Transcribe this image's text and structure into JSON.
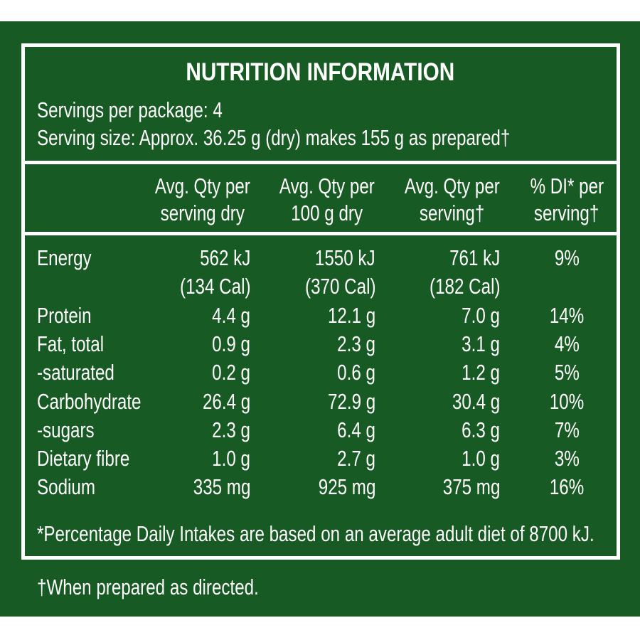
{
  "title": "NUTRITION INFORMATION",
  "servings_per_package": "Servings per package: 4",
  "serving_size": "Serving size: Approx. 36.25 g (dry) makes 155 g as prepared†",
  "columns": [
    [
      "Avg. Qty per",
      "serving dry"
    ],
    [
      "Avg. Qty per",
      "100 g dry"
    ],
    [
      "Avg. Qty per",
      "serving†"
    ],
    [
      "% DI* per",
      "serving†"
    ]
  ],
  "rows": [
    {
      "name": "Energy",
      "values": [
        "562 kJ",
        "1550 kJ",
        "761 kJ",
        "9%"
      ],
      "sub": [
        "(134 Cal)",
        "(370 Cal)",
        "(182 Cal)"
      ]
    },
    {
      "name": "Protein",
      "values": [
        "4.4 g",
        "12.1 g",
        "7.0 g",
        "14%"
      ]
    },
    {
      "name": "Fat, total",
      "values": [
        "0.9 g",
        "2.3 g",
        "3.1 g",
        "4%"
      ]
    },
    {
      "name": "-saturated",
      "values": [
        "0.2 g",
        "0.6 g",
        "1.2 g",
        "5%"
      ]
    },
    {
      "name": "Carbohydrate",
      "values": [
        "26.4 g",
        "72.9 g",
        "30.4 g",
        "10%"
      ]
    },
    {
      "name": "-sugars",
      "values": [
        "2.3 g",
        "6.4 g",
        "6.3 g",
        "7%"
      ]
    },
    {
      "name": "Dietary fibre",
      "values": [
        "1.0 g",
        "2.7 g",
        "1.0 g",
        "3%"
      ]
    },
    {
      "name": "Sodium",
      "values": [
        "335 mg",
        "925 mg",
        "375 mg",
        "16%"
      ]
    }
  ],
  "footnote_di": "*Percentage Daily Intakes are based on an average adult diet of 8700 kJ.",
  "footnote_prepared": "†When prepared as directed.",
  "colors": {
    "background": "#175a23",
    "text": "#ffffff"
  }
}
